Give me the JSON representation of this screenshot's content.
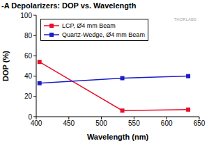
{
  "chart_data": {
    "type": "line",
    "title": "-A Depolarizers: DOP vs. Wavelength",
    "annotation": "THORLABS",
    "x_label": "Wavelength (nm)",
    "y_label": "DOP (%)",
    "xlim": [
      400,
      650
    ],
    "xticks": [
      400,
      450,
      500,
      550,
      600,
      650
    ],
    "ylim": [
      0,
      100
    ],
    "yticks": [
      0,
      20,
      40,
      60,
      80,
      100
    ],
    "grid": false,
    "legend": "top-left",
    "series": [
      {
        "name": "LCP, Ø4 mm Beam",
        "color": "#e8112d",
        "marker": "square",
        "x": [
          405,
          532,
          633
        ],
        "values": [
          54,
          6,
          7
        ]
      },
      {
        "name": "Quartz-Wedge, Ø4 mm Beam",
        "color": "#1c1cc8",
        "marker": "square",
        "x": [
          405,
          532,
          633
        ],
        "values": [
          33,
          38,
          40
        ]
      }
    ]
  }
}
